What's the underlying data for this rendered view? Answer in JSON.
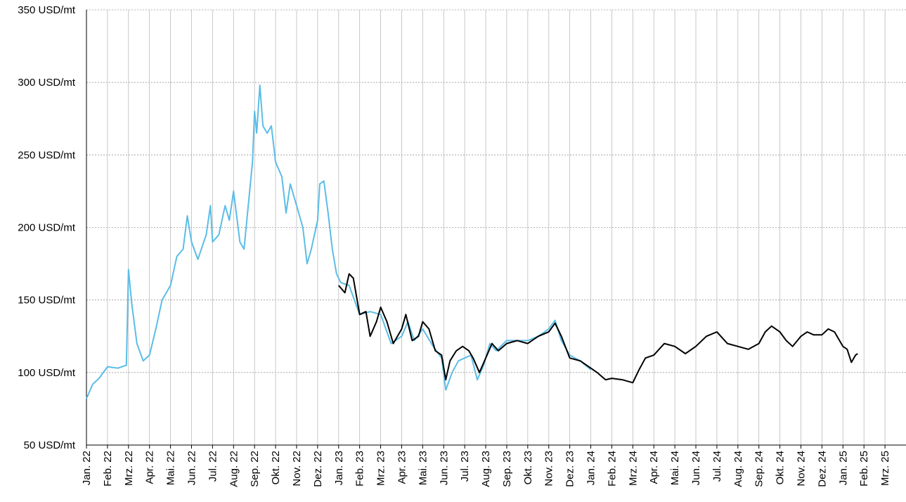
{
  "chart_data": {
    "type": "line",
    "xlim": [
      0,
      39
    ],
    "xticks": [
      {
        "value": 0,
        "label": "Jan. 22"
      },
      {
        "value": 1,
        "label": "Feb. 22"
      },
      {
        "value": 2,
        "label": "Mrz. 22"
      },
      {
        "value": 3,
        "label": "Apr. 22"
      },
      {
        "value": 4,
        "label": "Mai. 22"
      },
      {
        "value": 5,
        "label": "Jun. 22"
      },
      {
        "value": 6,
        "label": "Jul. 22"
      },
      {
        "value": 7,
        "label": "Aug. 22"
      },
      {
        "value": 8,
        "label": "Sep. 22"
      },
      {
        "value": 9,
        "label": "Okt. 22"
      },
      {
        "value": 10,
        "label": "Nov. 22"
      },
      {
        "value": 11,
        "label": "Dez. 22"
      },
      {
        "value": 12,
        "label": "Jan. 23"
      },
      {
        "value": 13,
        "label": "Feb. 23"
      },
      {
        "value": 14,
        "label": "Mrz. 23"
      },
      {
        "value": 15,
        "label": "Apr. 23"
      },
      {
        "value": 16,
        "label": "Mai. 23"
      },
      {
        "value": 17,
        "label": "Jun. 23"
      },
      {
        "value": 18,
        "label": "Jul. 23"
      },
      {
        "value": 19,
        "label": "Aug. 23"
      },
      {
        "value": 20,
        "label": "Sep. 23"
      },
      {
        "value": 21,
        "label": "Okt. 23"
      },
      {
        "value": 22,
        "label": "Nov. 23"
      },
      {
        "value": 23,
        "label": "Dez. 23"
      },
      {
        "value": 24,
        "label": "Jan. 24"
      },
      {
        "value": 25,
        "label": "Feb. 24"
      },
      {
        "value": 26,
        "label": "Mrz. 24"
      },
      {
        "value": 27,
        "label": "Apr. 24"
      },
      {
        "value": 28,
        "label": "Mai. 24"
      },
      {
        "value": 29,
        "label": "Jun. 24"
      },
      {
        "value": 30,
        "label": "Jul. 24"
      },
      {
        "value": 31,
        "label": "Aug. 24"
      },
      {
        "value": 32,
        "label": "Sep. 24"
      },
      {
        "value": 33,
        "label": "Okt. 24"
      },
      {
        "value": 34,
        "label": "Nov. 24"
      },
      {
        "value": 35,
        "label": "Dez. 24"
      },
      {
        "value": 36,
        "label": "Jan. 25"
      },
      {
        "value": 37,
        "label": "Feb. 25"
      },
      {
        "value": 38,
        "label": "Mrz. 25"
      }
    ],
    "ylim": [
      50,
      350
    ],
    "yticks": [
      {
        "value": 50,
        "label": "50 USD/mt"
      },
      {
        "value": 100,
        "label": "100 USD/mt"
      },
      {
        "value": 150,
        "label": "150 USD/mt"
      },
      {
        "value": 200,
        "label": "200 USD/mt"
      },
      {
        "value": 250,
        "label": "250 USD/mt"
      },
      {
        "value": 300,
        "label": "300 USD/mt"
      },
      {
        "value": 350,
        "label": "350 USD/mt"
      }
    ],
    "grid": true,
    "series": [
      {
        "color": "#5bbde6",
        "x": [
          0,
          0.3,
          0.6,
          1,
          1.5,
          1.9,
          2.0,
          2.15,
          2.4,
          2.7,
          3,
          3.3,
          3.6,
          4,
          4.3,
          4.6,
          4.8,
          5,
          5.3,
          5.7,
          5.9,
          6,
          6.3,
          6.6,
          6.8,
          7,
          7.3,
          7.5,
          7.7,
          7.9,
          8.0,
          8.1,
          8.25,
          8.4,
          8.6,
          8.8,
          9,
          9.3,
          9.5,
          9.7,
          10,
          10.3,
          10.5,
          10.7,
          11,
          11.1,
          11.3,
          11.5,
          11.7,
          11.9,
          12.1,
          12.5,
          13,
          13.5,
          14,
          14.5,
          15,
          15.3,
          15.6,
          16,
          16.5,
          16.9,
          17.1,
          17.4,
          17.7,
          18,
          18.3,
          18.6,
          18.9,
          19.2,
          19.5,
          20,
          20.5,
          21,
          21.5,
          22,
          22.3,
          22.6,
          23,
          23.5,
          24
        ],
        "values": [
          82,
          92,
          96,
          104,
          103,
          105,
          171,
          148,
          120,
          108,
          112,
          130,
          150,
          160,
          180,
          185,
          208,
          190,
          178,
          195,
          215,
          190,
          195,
          215,
          205,
          225,
          190,
          185,
          215,
          245,
          280,
          265,
          298,
          270,
          265,
          270,
          245,
          235,
          210,
          230,
          215,
          200,
          175,
          185,
          205,
          230,
          232,
          210,
          185,
          168,
          162,
          160,
          140,
          142,
          140,
          120,
          125,
          135,
          122,
          130,
          118,
          110,
          88,
          100,
          108,
          110,
          112,
          95,
          105,
          120,
          115,
          122,
          122,
          122,
          125,
          130,
          136,
          122,
          112,
          108,
          102
        ]
      },
      {
        "color": "#000000",
        "x": [
          12,
          12.3,
          12.5,
          12.7,
          13,
          13.3,
          13.5,
          13.8,
          14,
          14.3,
          14.6,
          15,
          15.2,
          15.5,
          15.8,
          16,
          16.3,
          16.6,
          16.9,
          17.1,
          17.3,
          17.6,
          17.9,
          18.2,
          18.4,
          18.7,
          19,
          19.3,
          19.6,
          20,
          20.5,
          21,
          21.5,
          22,
          22.3,
          22.6,
          23,
          23.5,
          24,
          24.3,
          24.7,
          25,
          25.5,
          26,
          26.3,
          26.6,
          27,
          27.5,
          28,
          28.5,
          29,
          29.5,
          30,
          30.5,
          31,
          31.5,
          32,
          32.3,
          32.6,
          33,
          33.3,
          33.6,
          34,
          34.3,
          34.6,
          35,
          35.3,
          35.6,
          36,
          36.2,
          36.4,
          36.6,
          36.7
        ],
        "values": [
          160,
          155,
          168,
          165,
          140,
          142,
          125,
          135,
          145,
          135,
          120,
          130,
          140,
          122,
          125,
          135,
          130,
          115,
          112,
          95,
          108,
          115,
          118,
          115,
          110,
          100,
          110,
          120,
          115,
          120,
          122,
          120,
          125,
          128,
          134,
          125,
          110,
          108,
          103,
          100,
          95,
          96,
          95,
          93,
          102,
          110,
          112,
          120,
          118,
          113,
          118,
          125,
          128,
          120,
          118,
          116,
          120,
          128,
          132,
          128,
          122,
          118,
          125,
          128,
          126,
          126,
          130,
          128,
          118,
          116,
          107,
          112,
          113
        ]
      }
    ]
  }
}
